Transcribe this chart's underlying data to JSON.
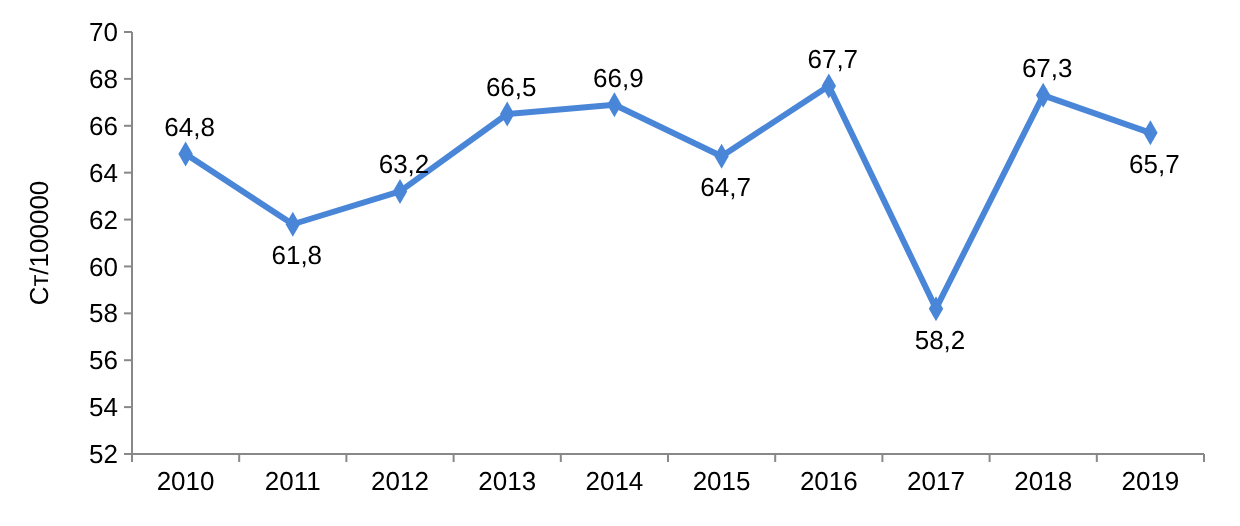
{
  "chart_data": {
    "type": "line",
    "ylabel": "Ст/100000",
    "categories": [
      "2010",
      "2011",
      "2012",
      "2013",
      "2014",
      "2015",
      "2016",
      "2017",
      "2018",
      "2019"
    ],
    "series": [
      {
        "color": "#4a86d8",
        "values": [
          64.8,
          61.8,
          63.2,
          66.5,
          66.9,
          64.7,
          67.7,
          58.2,
          67.3,
          65.7
        ],
        "value_labels": [
          "64,8",
          "61,8",
          "63,2",
          "66,5",
          "66,9",
          "64,7",
          "67,7",
          "58,2",
          "67,3",
          "65,7"
        ]
      }
    ],
    "ylim": [
      52,
      70
    ],
    "yticks": [
      52,
      54,
      56,
      58,
      60,
      62,
      64,
      66,
      68,
      70
    ],
    "marker": "diamond",
    "line_style": "solid"
  }
}
